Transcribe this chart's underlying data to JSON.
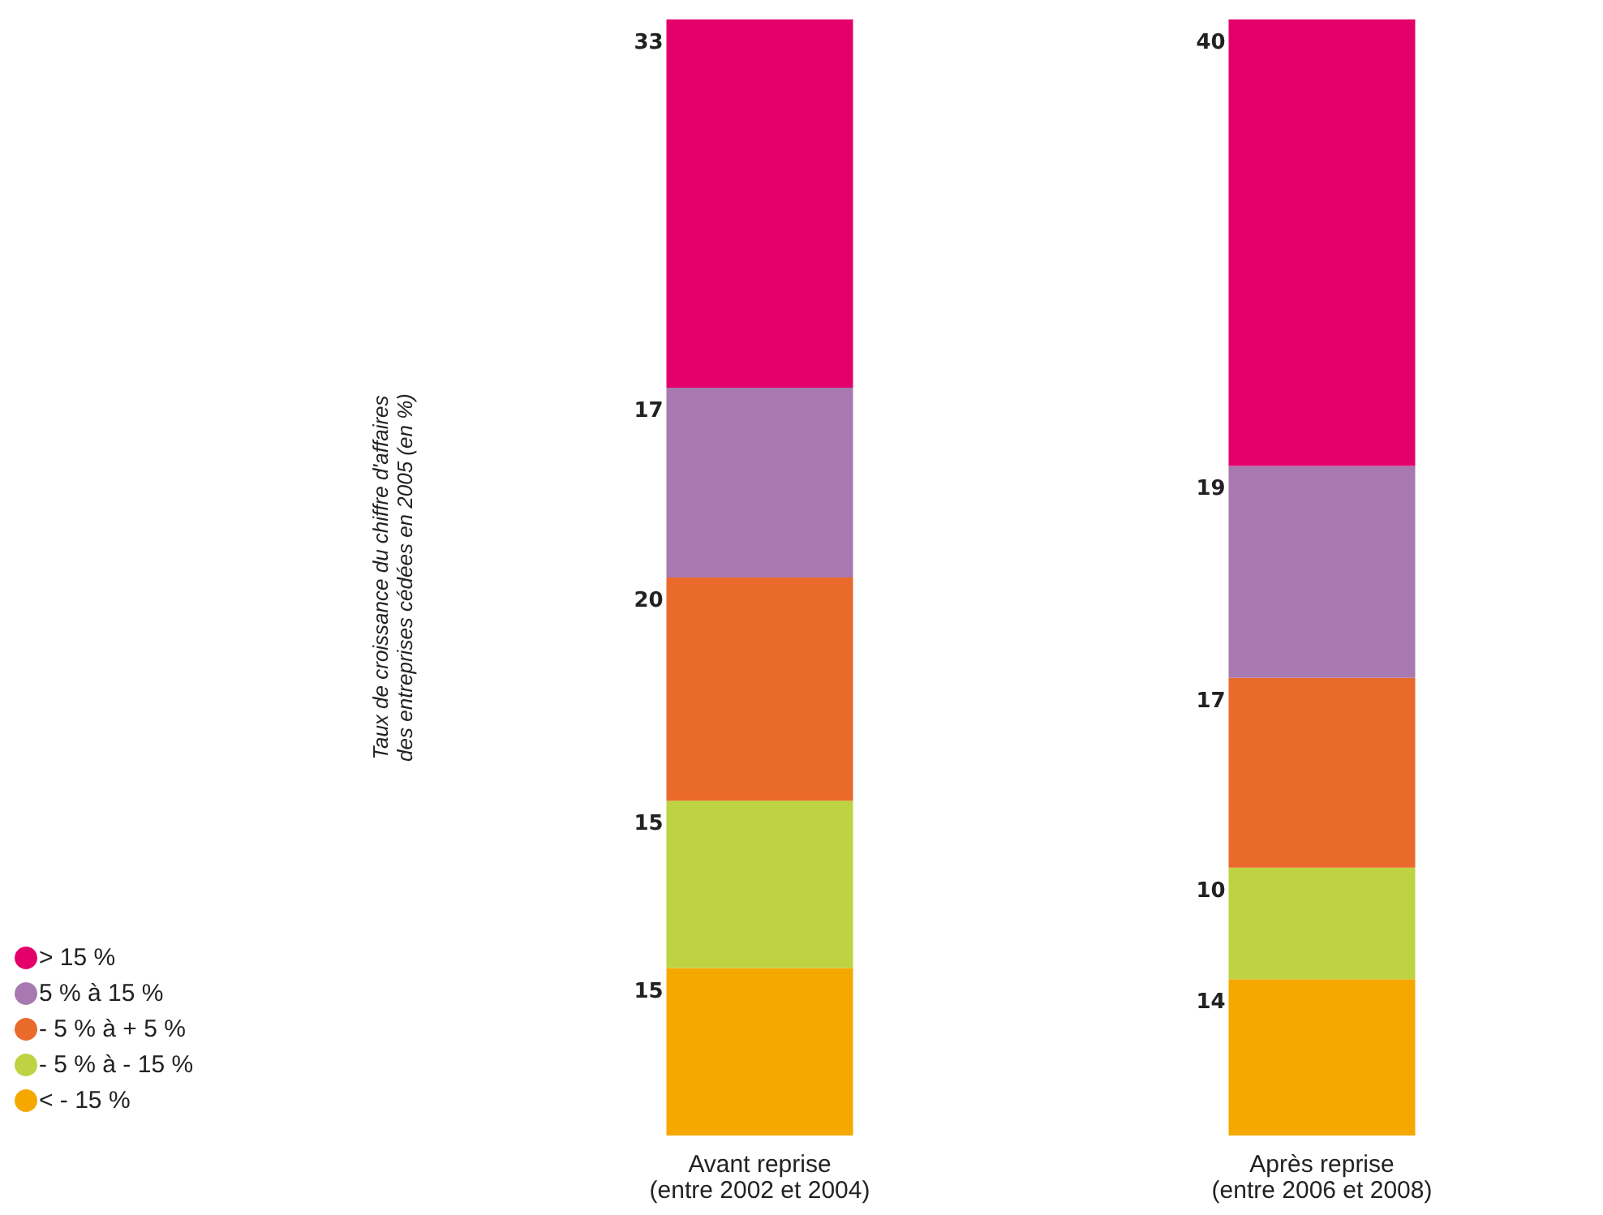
{
  "chart_data": {
    "type": "bar",
    "stacked": true,
    "ylabel": "Taux de croissance du chiffre d'affaires\ndes entreprises cédées en 2005 (en %)",
    "categories": [
      "Avant reprise\n(entre 2002 et 2004)",
      "Après reprise\n(entre 2006 et 2008)"
    ],
    "series": [
      {
        "name": "< - 15 %",
        "color": "#f5a800",
        "values": [
          15,
          14
        ]
      },
      {
        "name": "- 5 % à - 15 %",
        "color": "#bdd342",
        "values": [
          15,
          10
        ]
      },
      {
        "name": "- 5 % à + 5 %",
        "color": "#e96a2a",
        "values": [
          20,
          17
        ]
      },
      {
        "name": "5 % à 15 %",
        "color": "#a879b0",
        "values": [
          17,
          19
        ]
      },
      {
        "name": "> 15 %",
        "color": "#e4006b",
        "values": [
          33,
          40
        ]
      }
    ],
    "data_labels": true,
    "legend": "bottom left",
    "grid": false
  }
}
